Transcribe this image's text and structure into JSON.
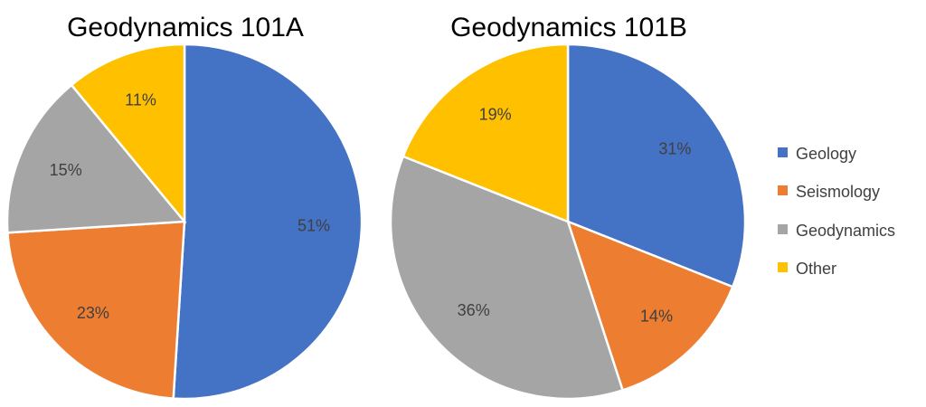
{
  "chart_data": [
    {
      "type": "pie",
      "title": "Geodynamics 101A",
      "start_angle_deg": 0,
      "direction": "clockwise",
      "series": [
        {
          "category": "Geology",
          "value": 51,
          "label": "51%"
        },
        {
          "category": "Seismology",
          "value": 23,
          "label": "23%"
        },
        {
          "category": "Geodynamics",
          "value": 15,
          "label": "15%"
        },
        {
          "category": "Other",
          "value": 11,
          "label": "11%"
        }
      ]
    },
    {
      "type": "pie",
      "title": "Geodynamics 101B",
      "start_angle_deg": 0,
      "direction": "clockwise",
      "series": [
        {
          "category": "Geology",
          "value": 31,
          "label": "31%"
        },
        {
          "category": "Seismology",
          "value": 14,
          "label": "14%"
        },
        {
          "category": "Geodynamics",
          "value": 36,
          "label": "36%"
        },
        {
          "category": "Other",
          "value": 19,
          "label": "19%"
        }
      ]
    }
  ],
  "legend": {
    "placement": "right",
    "items": [
      {
        "label": "Geology",
        "color": "#4472C4"
      },
      {
        "label": "Seismology",
        "color": "#ED7D31"
      },
      {
        "label": "Geodynamics",
        "color": "#A5A5A5"
      },
      {
        "label": "Other",
        "color": "#FFC000"
      }
    ]
  }
}
